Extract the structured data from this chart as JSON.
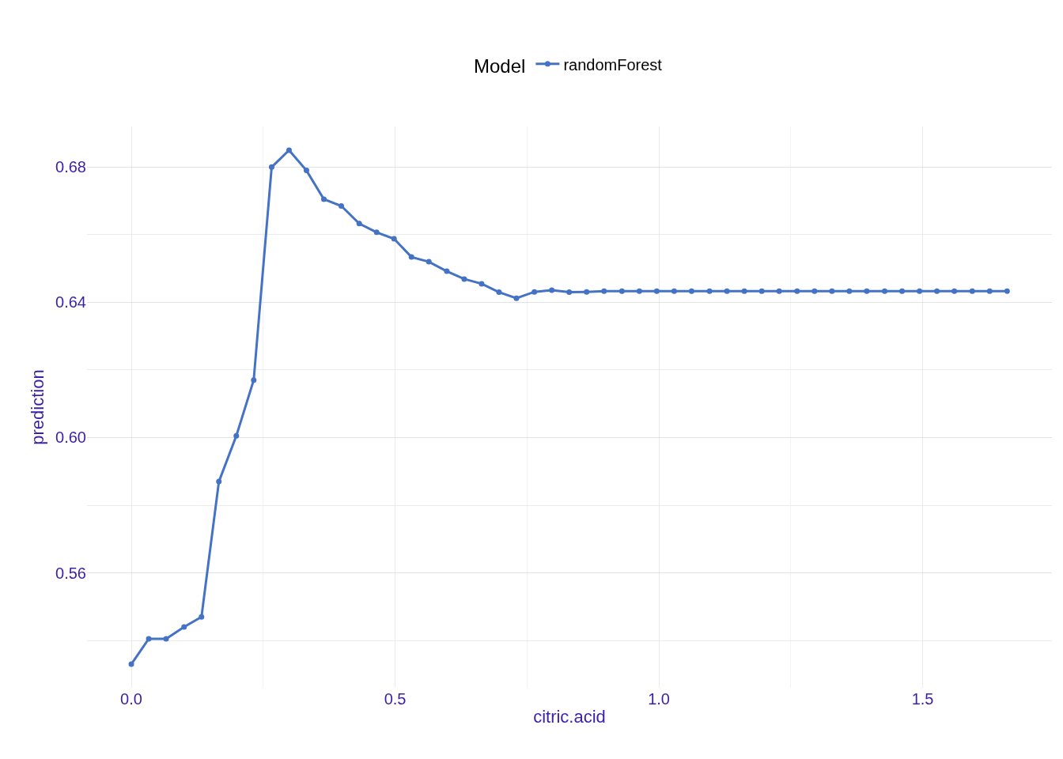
{
  "chart_data": {
    "type": "line",
    "xlabel": "citric.acid",
    "ylabel": "prediction",
    "legend_title": "Model",
    "x": [
      0,
      0.033,
      0.066,
      0.1,
      0.133,
      0.166,
      0.199,
      0.232,
      0.266,
      0.299,
      0.332,
      0.365,
      0.398,
      0.432,
      0.465,
      0.498,
      0.531,
      0.564,
      0.598,
      0.631,
      0.664,
      0.697,
      0.73,
      0.764,
      0.797,
      0.83,
      0.863,
      0.896,
      0.93,
      0.963,
      0.996,
      1.029,
      1.062,
      1.096,
      1.129,
      1.162,
      1.195,
      1.228,
      1.262,
      1.295,
      1.328,
      1.361,
      1.394,
      1.428,
      1.461,
      1.494,
      1.527,
      1.56,
      1.594,
      1.627,
      1.66
    ],
    "series": [
      {
        "name": "randomForest",
        "color": "#4472c4",
        "values": [
          0.533,
          0.5405,
          0.5405,
          0.544,
          0.547,
          0.587,
          0.6005,
          0.617,
          0.68,
          0.685,
          0.679,
          0.6705,
          0.6685,
          0.6633,
          0.6607,
          0.6588,
          0.6534,
          0.652,
          0.6492,
          0.6469,
          0.6455,
          0.643,
          0.6412,
          0.6431,
          0.6436,
          0.643,
          0.6431,
          0.6433,
          0.6433,
          0.6433,
          0.6433,
          0.6433,
          0.6433,
          0.6433,
          0.6433,
          0.6433,
          0.6433,
          0.6433,
          0.6433,
          0.6433,
          0.6433,
          0.6433,
          0.6433,
          0.6433,
          0.6433,
          0.6433,
          0.6433,
          0.6433,
          0.6433,
          0.6433,
          0.6433
        ]
      }
    ],
    "xlim": [
      -0.084,
      1.745
    ],
    "xticks": [
      {
        "value": 0,
        "label": "0.0"
      },
      0.5,
      {
        "value": 1,
        "label": "1.0"
      },
      1.5
    ],
    "ylim": [
      0.526,
      0.692
    ],
    "yticks": [
      {
        "value": 0.56,
        "label": "0.56"
      },
      {
        "value": 0.6,
        "label": "0.60"
      },
      {
        "value": 0.64,
        "label": "0.64"
      },
      {
        "value": 0.68,
        "label": "0.68"
      }
    ],
    "grid": true,
    "legend": "top",
    "marker": "circle",
    "line_style": "solid"
  }
}
